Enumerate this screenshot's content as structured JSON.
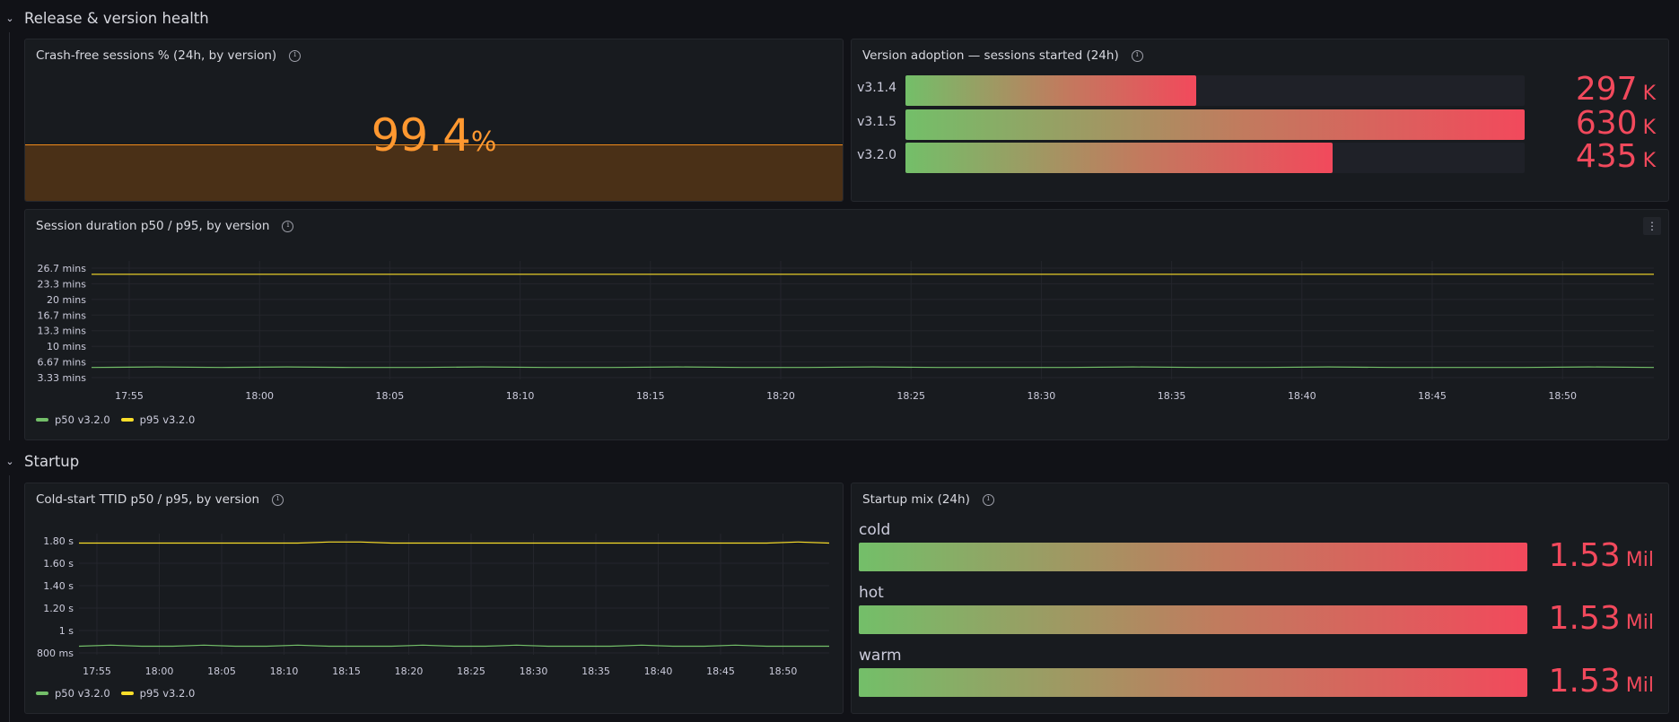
{
  "rows": [
    {
      "title": "Release & version health"
    },
    {
      "title": "Startup"
    }
  ],
  "panels": {
    "crash_free": {
      "title": "Crash-free sessions % (24h, by version)",
      "value": "99.4",
      "unit": "%",
      "color": "#ff9830"
    },
    "adoption": {
      "title": "Version adoption — sessions started (24h)",
      "items": [
        {
          "label": "v3.1.4",
          "value": "297",
          "unit": "K",
          "fraction": 0.47
        },
        {
          "label": "v3.1.5",
          "value": "630",
          "unit": "K",
          "fraction": 1.0
        },
        {
          "label": "v3.2.0",
          "value": "435",
          "unit": "K",
          "fraction": 0.69
        }
      ]
    },
    "duration": {
      "title": "Session duration p50 / p95, by version",
      "menu_icon": "kebab-menu-icon"
    },
    "cold_start": {
      "title": "Cold-start TTID p50 / p95, by version"
    },
    "startup_mix": {
      "title": "Startup mix (24h)",
      "items": [
        {
          "label": "cold",
          "value": "1.53",
          "unit": "Mil",
          "fraction": 1.0
        },
        {
          "label": "hot",
          "value": "1.53",
          "unit": "Mil",
          "fraction": 1.0
        },
        {
          "label": "warm",
          "value": "1.53",
          "unit": "Mil",
          "fraction": 1.0
        }
      ]
    }
  },
  "chart_data": [
    {
      "type": "line",
      "title": "Session duration p50 / p95, by version",
      "x_ticks": [
        "17:55",
        "18:00",
        "18:05",
        "18:10",
        "18:15",
        "18:20",
        "18:25",
        "18:30",
        "18:35",
        "18:40",
        "18:45",
        "18:50"
      ],
      "y_ticks": [
        "26.7 mins",
        "23.3 mins",
        "20 mins",
        "16.7 mins",
        "13.3 mins",
        "10 mins",
        "6.67 mins",
        "3.33 mins"
      ],
      "ylim": [
        3.33,
        26.7
      ],
      "unit": "mins",
      "series": [
        {
          "name": "p50 v3.2.0",
          "color": "#73bf69",
          "values": [
            5.5,
            5.6,
            5.5,
            5.6,
            5.5,
            5.5,
            5.6,
            5.5,
            5.5,
            5.6,
            5.5,
            5.5,
            5.6,
            5.5,
            5.5,
            5.5,
            5.6,
            5.5,
            5.5,
            5.6,
            5.5,
            5.5,
            5.5,
            5.6,
            5.5
          ]
        },
        {
          "name": "p95 v3.2.0",
          "color": "#fade2a",
          "values": [
            25.4,
            25.4,
            25.4,
            25.4,
            25.4,
            25.4,
            25.4,
            25.4,
            25.4,
            25.4,
            25.4,
            25.4,
            25.4,
            25.4,
            25.4,
            25.4,
            25.4,
            25.4,
            25.4,
            25.4,
            25.4,
            25.4,
            25.4,
            25.4,
            25.4
          ]
        }
      ],
      "legend": "bottom-left",
      "grid": true
    },
    {
      "type": "line",
      "title": "Cold-start TTID p50 / p95, by version",
      "x_ticks": [
        "17:55",
        "18:00",
        "18:05",
        "18:10",
        "18:15",
        "18:20",
        "18:25",
        "18:30",
        "18:35",
        "18:40",
        "18:45",
        "18:50"
      ],
      "y_ticks": [
        "1.80 s",
        "1.60 s",
        "1.40 s",
        "1.20 s",
        "1 s",
        "800 ms"
      ],
      "ylim": [
        0.8,
        1.8
      ],
      "unit": "s",
      "series": [
        {
          "name": "p50 v3.2.0",
          "color": "#73bf69",
          "values": [
            0.86,
            0.87,
            0.86,
            0.86,
            0.87,
            0.86,
            0.86,
            0.87,
            0.86,
            0.86,
            0.86,
            0.87,
            0.86,
            0.86,
            0.87,
            0.86,
            0.86,
            0.86,
            0.87,
            0.86,
            0.86,
            0.87,
            0.86,
            0.86,
            0.86
          ]
        },
        {
          "name": "p95 v3.2.0",
          "color": "#fade2a",
          "values": [
            1.78,
            1.78,
            1.78,
            1.78,
            1.78,
            1.78,
            1.78,
            1.78,
            1.79,
            1.79,
            1.78,
            1.78,
            1.78,
            1.78,
            1.78,
            1.78,
            1.78,
            1.78,
            1.78,
            1.78,
            1.78,
            1.78,
            1.78,
            1.79,
            1.78
          ]
        }
      ],
      "legend": "bottom-left",
      "grid": true
    }
  ]
}
